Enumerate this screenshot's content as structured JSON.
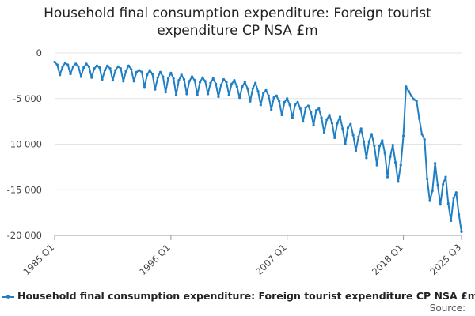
{
  "chart_data": {
    "type": "line",
    "title_line1": "Household final consumption expenditure: Foreign tourist",
    "title_line2": "expenditure CP NSA £m",
    "xlabel": "",
    "ylabel": "",
    "x_tick_labels": [
      "1985 Q1",
      "1996 Q1",
      "2007 Q1",
      "2018 Q1",
      "2025 Q3"
    ],
    "y_tick_labels": [
      "0",
      "-5 000",
      "-10 000",
      "-15 000",
      "-20 000"
    ],
    "ylim": [
      -20000,
      0
    ],
    "grid": true,
    "legend_position": "bottom",
    "source_label": "Source:",
    "series": [
      {
        "name": "Household final consumption expenditure: Foreign tourist expenditure CP NSA £m",
        "color": "#1f7fc4",
        "start": "1985 Q1",
        "frequency": "quarterly",
        "values": [
          -1000,
          -1300,
          -2400,
          -1500,
          -1100,
          -1300,
          -2300,
          -1500,
          -1200,
          -1500,
          -2600,
          -1600,
          -1200,
          -1500,
          -2700,
          -1700,
          -1400,
          -1600,
          -2900,
          -1900,
          -1400,
          -1700,
          -3000,
          -1900,
          -1500,
          -1700,
          -3100,
          -2000,
          -1400,
          -1800,
          -3100,
          -2100,
          -1900,
          -2100,
          -3800,
          -2400,
          -1900,
          -2300,
          -4000,
          -2700,
          -2100,
          -2600,
          -4300,
          -2800,
          -2200,
          -2800,
          -4600,
          -3000,
          -2400,
          -2900,
          -4500,
          -3100,
          -2600,
          -3000,
          -4600,
          -3200,
          -2700,
          -3100,
          -4500,
          -3300,
          -2800,
          -3400,
          -4800,
          -3500,
          -2900,
          -3200,
          -4600,
          -3400,
          -3000,
          -3700,
          -4900,
          -3700,
          -3200,
          -3900,
          -5300,
          -3900,
          -3300,
          -4200,
          -5700,
          -4400,
          -4100,
          -4700,
          -6200,
          -4900,
          -4700,
          -5300,
          -6800,
          -5400,
          -5000,
          -5700,
          -7100,
          -5700,
          -5400,
          -6100,
          -7500,
          -6000,
          -5800,
          -6500,
          -7900,
          -6300,
          -6100,
          -7100,
          -8700,
          -7300,
          -6800,
          -7700,
          -9300,
          -7700,
          -7000,
          -8300,
          -10000,
          -8200,
          -7800,
          -9000,
          -10700,
          -9200,
          -8300,
          -9700,
          -11500,
          -9700,
          -8900,
          -10200,
          -12300,
          -10200,
          -9600,
          -11000,
          -13600,
          -11400,
          -10100,
          -12000,
          -14100,
          -12300,
          -9100,
          -3700,
          -4200,
          -4700,
          -5100,
          -5300,
          -7200,
          -8900,
          -9500,
          -13800,
          -16200,
          -15100,
          -12100,
          -14500,
          -16600,
          -14400,
          -13600,
          -16500,
          -18400,
          -15900,
          -15300,
          -17700,
          -19600
        ]
      }
    ]
  }
}
